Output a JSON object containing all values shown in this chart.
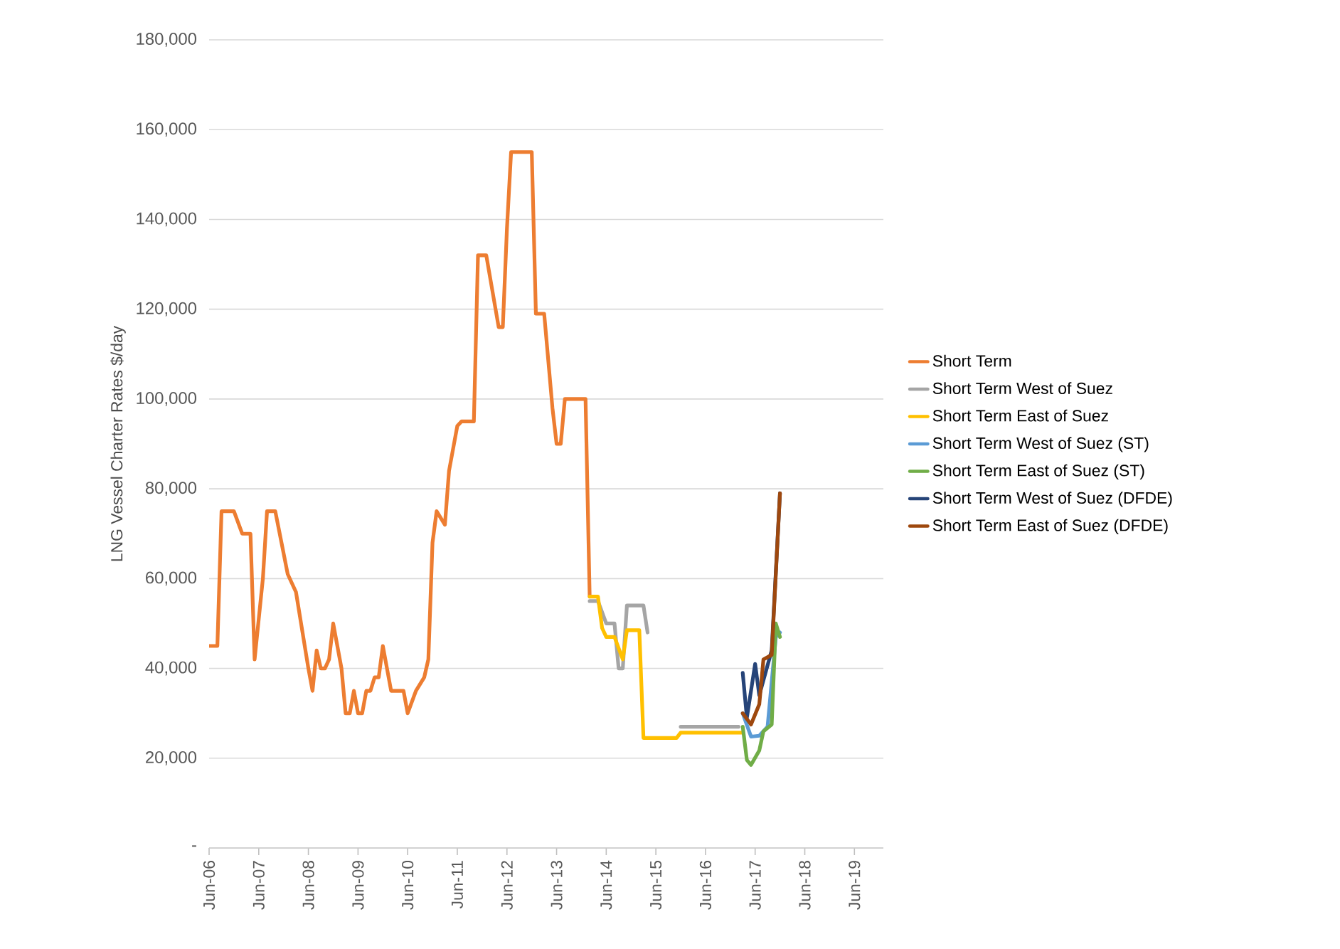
{
  "chart_data": {
    "type": "line",
    "ylabel": "LNG Vessel Charter Rates $/day",
    "xlim": [
      "2006-06",
      "2020-01"
    ],
    "xticks": [
      {
        "value": "2006-06",
        "label": "Jun-06"
      },
      {
        "value": "2007-06",
        "label": "Jun-07"
      },
      {
        "value": "2008-06",
        "label": "Jun-08"
      },
      {
        "value": "2009-06",
        "label": "Jun-09"
      },
      {
        "value": "2010-06",
        "label": "Jun-10"
      },
      {
        "value": "2011-06",
        "label": "Jun-11"
      },
      {
        "value": "2012-06",
        "label": "Jun-12"
      },
      {
        "value": "2013-06",
        "label": "Jun-13"
      },
      {
        "value": "2014-06",
        "label": "Jun-14"
      },
      {
        "value": "2015-06",
        "label": "Jun-15"
      },
      {
        "value": "2016-06",
        "label": "Jun-16"
      },
      {
        "value": "2017-06",
        "label": "Jun-17"
      },
      {
        "value": "2018-06",
        "label": "Jun-18"
      },
      {
        "value": "2019-06",
        "label": "Jun-19"
      }
    ],
    "ylim": [
      0,
      180000
    ],
    "yticks": [
      {
        "value": 0,
        "label": "-"
      },
      {
        "value": 20000,
        "label": "20,000"
      },
      {
        "value": 40000,
        "label": "40,000"
      },
      {
        "value": 60000,
        "label": "60,000"
      },
      {
        "value": 80000,
        "label": "80,000"
      },
      {
        "value": 100000,
        "label": "100,000"
      },
      {
        "value": 120000,
        "label": "120,000"
      },
      {
        "value": 140000,
        "label": "140,000"
      },
      {
        "value": 160000,
        "label": "160,000"
      },
      {
        "value": 180000,
        "label": "180,000"
      }
    ],
    "grid": "y",
    "legend": "right",
    "series": [
      {
        "name": "Short Term",
        "color": "#ed7d31",
        "x": [
          "2006-06",
          "2006-08",
          "2006-09",
          "2006-12",
          "2007-02",
          "2007-04",
          "2007-05",
          "2007-07",
          "2007-08",
          "2007-10",
          "2008-01",
          "2008-03",
          "2008-06",
          "2008-07",
          "2008-08",
          "2008-09",
          "2008-10",
          "2008-11",
          "2008-12",
          "2009-01",
          "2009-02",
          "2009-03",
          "2009-04",
          "2009-05",
          "2009-06",
          "2009-07",
          "2009-08",
          "2009-09",
          "2009-10",
          "2009-11",
          "2009-12",
          "2010-02",
          "2010-05",
          "2010-06",
          "2010-08",
          "2010-10",
          "2010-11",
          "2010-12",
          "2011-01",
          "2011-03",
          "2011-04",
          "2011-06",
          "2011-07",
          "2011-10",
          "2011-11",
          "2012-01",
          "2012-04",
          "2012-05",
          "2012-06",
          "2012-07",
          "2012-12",
          "2013-01",
          "2013-03",
          "2013-05",
          "2013-06",
          "2013-07",
          "2013-08",
          "2014-01",
          "2014-02"
        ],
        "values": [
          45000,
          45000,
          75000,
          75000,
          70000,
          70000,
          42000,
          60000,
          75000,
          75000,
          61000,
          57000,
          40000,
          35000,
          44000,
          40000,
          40000,
          42000,
          50000,
          45000,
          40000,
          30000,
          30000,
          35000,
          30000,
          30000,
          35000,
          35000,
          38000,
          38000,
          45000,
          35000,
          35000,
          30000,
          35000,
          38000,
          42000,
          68000,
          75000,
          72000,
          84000,
          94000,
          95000,
          95000,
          132000,
          132000,
          116000,
          116000,
          138000,
          155000,
          155000,
          119000,
          119000,
          98000,
          90000,
          90000,
          100000,
          100000,
          56000
        ]
      },
      {
        "name": "Short Term West of Suez",
        "color": "#a5a5a5",
        "x": [
          "2014-02",
          "2014-04",
          "2014-06",
          "2014-08",
          "2014-09",
          "2014-10",
          "2014-11",
          "2015-03",
          "2015-04",
          "2015-06",
          "2015-12",
          "2017-02"
        ],
        "values": [
          55000,
          55000,
          50000,
          50000,
          40000,
          40000,
          54000,
          54000,
          48000,
          null,
          27000,
          27000
        ]
      },
      {
        "name": "Short Term  East of Suez",
        "color": "#ffc000",
        "x": [
          "2014-02",
          "2014-04",
          "2014-05",
          "2014-06",
          "2014-08",
          "2014-10",
          "2014-11",
          "2015-02",
          "2015-03",
          "2015-11",
          "2015-12",
          "2017-03"
        ],
        "values": [
          56000,
          56000,
          49000,
          47000,
          47000,
          42000,
          48500,
          48500,
          24500,
          24500,
          25700,
          25700
        ]
      },
      {
        "name": "Short Term West of Suez (ST)",
        "color": "#5b9bd5",
        "x": [
          "2017-03",
          "2017-05",
          "2017-07",
          "2017-09",
          "2017-11",
          "2017-12"
        ],
        "values": [
          30000,
          24800,
          25000,
          27000,
          47000,
          48000
        ]
      },
      {
        "name": "Short Term East of Suez (ST)",
        "color": "#70ad47",
        "x": [
          "2017-03",
          "2017-04",
          "2017-05",
          "2017-07",
          "2017-08",
          "2017-10",
          "2017-11",
          "2017-12"
        ],
        "values": [
          27000,
          19600,
          18500,
          21700,
          26000,
          27500,
          50000,
          47000
        ]
      },
      {
        "name": "Short Term West of Suez (DFDE)",
        "color": "#264478",
        "x": [
          "2017-03",
          "2017-04",
          "2017-06",
          "2017-07",
          "2017-10",
          "2017-12"
        ],
        "values": [
          39000,
          29000,
          41000,
          34000,
          44000,
          79000
        ]
      },
      {
        "name": "Short Term East of Suez (DFDE)",
        "color": "#9e480e",
        "x": [
          "2017-03",
          "2017-05",
          "2017-07",
          "2017-08",
          "2017-10",
          "2017-12"
        ],
        "values": [
          30000,
          27500,
          32000,
          42000,
          43000,
          79000
        ]
      }
    ]
  }
}
